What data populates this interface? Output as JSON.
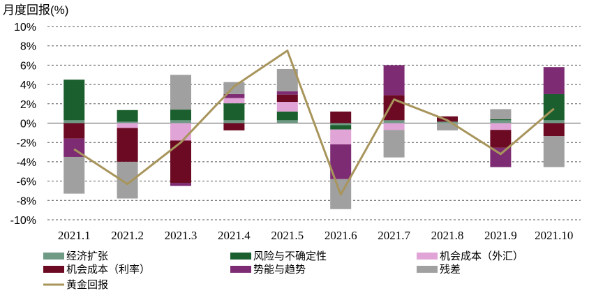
{
  "chart_data": {
    "type": "bar",
    "stacked": true,
    "ylabel": "月度回报(%)",
    "ylim": [
      -10,
      10
    ],
    "ytick_step": 2,
    "ytick_labels": [
      "10%",
      "8%",
      "6%",
      "4%",
      "2%",
      "0%",
      "-2%",
      "-4%",
      "-6%",
      "-8%",
      "-10%"
    ],
    "grid": "horizontal-dashed",
    "legend_position": "bottom",
    "categories": [
      "2021.1",
      "2021.2",
      "2021.3",
      "2021.4",
      "2021.5",
      "2021.6",
      "2021.7",
      "2021.8",
      "2021.9",
      "2021.10"
    ],
    "series": [
      {
        "name": "经济扩张",
        "color": "#6f9a85",
        "kind": "bar",
        "values": [
          0.3,
          0.15,
          0.3,
          0.3,
          0.3,
          -0.2,
          0.3,
          0.15,
          0.3,
          0.3
        ]
      },
      {
        "name": "风险与不确定性",
        "color": "#1a5f2d",
        "kind": "bar",
        "values": [
          4.2,
          1.2,
          1.1,
          1.75,
          0.9,
          -0.45,
          0.0,
          0.0,
          0.1,
          2.7
        ]
      },
      {
        "name": "机会成本（外汇）",
        "color": "#e0a4d6",
        "kind": "bar",
        "values": [
          0.0,
          -0.5,
          -1.8,
          0.55,
          1.0,
          -1.55,
          -0.7,
          0.0,
          -0.7,
          0.0
        ]
      },
      {
        "name": "机会成本（利率）",
        "color": "#6b0a22",
        "kind": "bar",
        "values": [
          -1.6,
          -3.5,
          -4.4,
          -0.75,
          0.75,
          1.2,
          2.6,
          0.55,
          -1.85,
          -1.35
        ]
      },
      {
        "name": "势能与趋势",
        "color": "#7d2c73",
        "kind": "bar",
        "values": [
          -1.9,
          0.0,
          -0.3,
          0.4,
          0.35,
          -3.6,
          3.1,
          0.0,
          -2.0,
          2.8
        ]
      },
      {
        "name": "残差",
        "color": "#a0a0a0",
        "kind": "bar",
        "values": [
          -3.8,
          -3.8,
          3.6,
          1.25,
          2.3,
          -3.1,
          -2.85,
          -0.75,
          1.05,
          -3.2
        ]
      },
      {
        "name": "黄金回报",
        "color": "#a8955c",
        "kind": "line",
        "values": [
          -2.7,
          -6.3,
          -2.0,
          3.8,
          7.5,
          -7.4,
          2.45,
          0.3,
          -3.2,
          1.5
        ]
      }
    ]
  }
}
